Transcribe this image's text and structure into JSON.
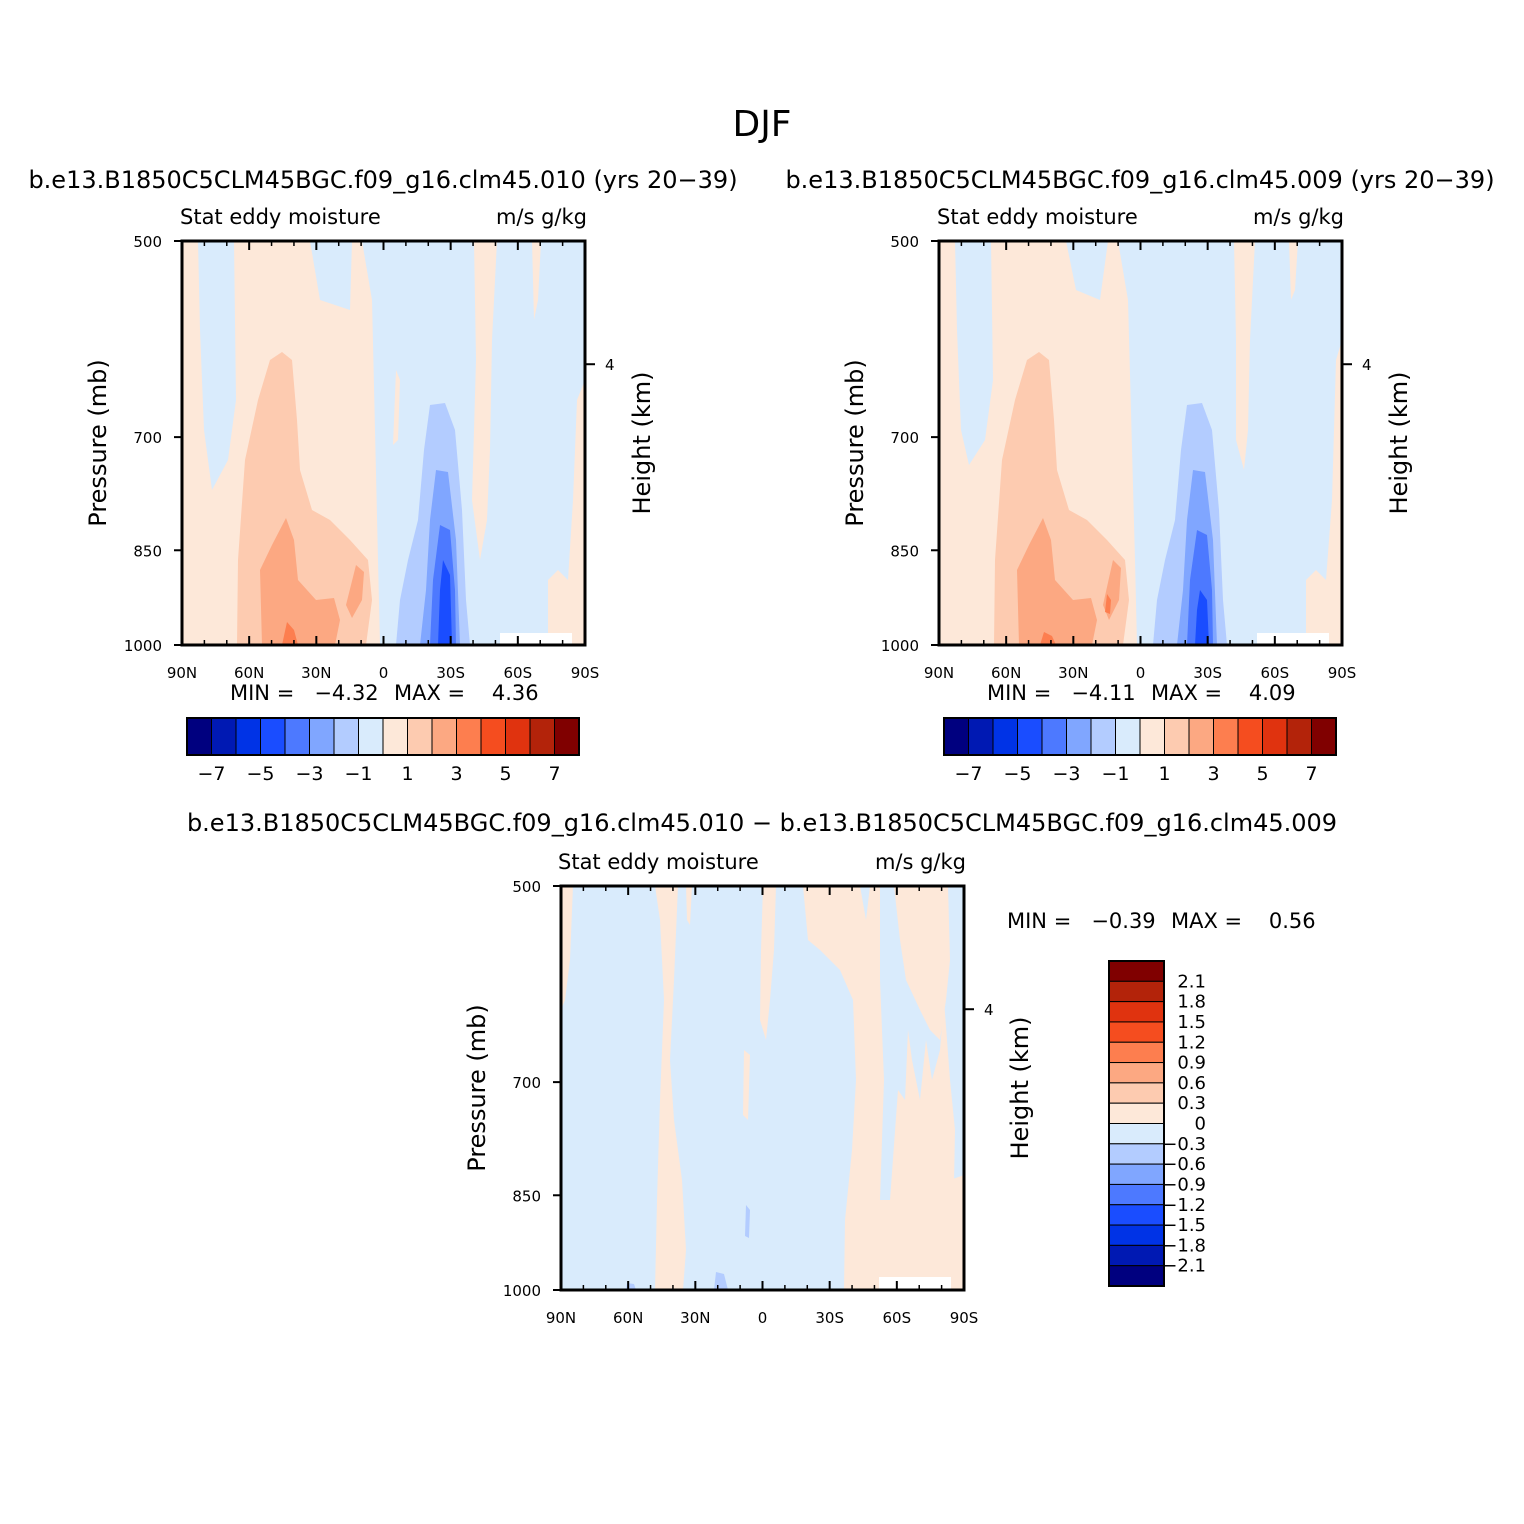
{
  "figure_title": "DJF",
  "palette": {
    "full": [
      "#00007f",
      "#0019b3",
      "#0033e6",
      "#1a4dff",
      "#4d79ff",
      "#80a6ff",
      "#b3ccff",
      "#d9ebfc",
      "#fde8d9",
      "#fdcbb0",
      "#fca882",
      "#fd7e4f",
      "#f54d1f",
      "#e0330f",
      "#b3230a",
      "#800000"
    ],
    "diff": [
      "#00007f",
      "#0019b3",
      "#0033e6",
      "#1a4dff",
      "#4d79ff",
      "#80a6ff",
      "#b3ccff",
      "#d9ebfc",
      "#fde8d9",
      "#fdcbb0",
      "#fca882",
      "#fd7e4f",
      "#f54d1f",
      "#e0330f",
      "#b3230a",
      "#800000"
    ]
  },
  "chart_data": [
    {
      "type": "heatmap",
      "title": "b.e13.B1850C5CLM45BGC.f09_g16.clm45.010 (yrs 20−39)",
      "left_label": "Stat eddy moisture",
      "right_label": "m/s g/kg",
      "xlabel": "",
      "ylabel": "Pressure (mb)",
      "ylabel_right": "Height (km)",
      "x_ticks": [
        "90N",
        "60N",
        "30N",
        "0",
        "30S",
        "60S",
        "90S"
      ],
      "y_ticks": [
        "500",
        "700",
        "850",
        "1000"
      ],
      "y_tick_values": [
        500,
        700,
        850,
        1000
      ],
      "y_right_ticks": [
        "4"
      ],
      "ylim": [
        1000,
        500
      ],
      "y_scale": "log",
      "min_text": "MIN =   −4.32",
      "max_text": "MAX =    4.36",
      "colorbar": {
        "orientation": "horizontal",
        "labels": [
          "−7",
          "−5",
          "−3",
          "−1",
          "1",
          "3",
          "5",
          "7"
        ]
      }
    },
    {
      "type": "heatmap",
      "title": "b.e13.B1850C5CLM45BGC.f09_g16.clm45.009 (yrs 20−39)",
      "left_label": "Stat eddy moisture",
      "right_label": "m/s g/kg",
      "xlabel": "",
      "ylabel": "Pressure (mb)",
      "ylabel_right": "Height (km)",
      "x_ticks": [
        "90N",
        "60N",
        "30N",
        "0",
        "30S",
        "60S",
        "90S"
      ],
      "y_ticks": [
        "500",
        "700",
        "850",
        "1000"
      ],
      "y_tick_values": [
        500,
        700,
        850,
        1000
      ],
      "y_right_ticks": [
        "4"
      ],
      "ylim": [
        1000,
        500
      ],
      "y_scale": "log",
      "min_text": "MIN =   −4.11",
      "max_text": "MAX =    4.09",
      "colorbar": {
        "orientation": "horizontal",
        "labels": [
          "−7",
          "−5",
          "−3",
          "−1",
          "1",
          "3",
          "5",
          "7"
        ]
      }
    },
    {
      "type": "heatmap",
      "title": "b.e13.B1850C5CLM45BGC.f09_g16.clm45.010 − b.e13.B1850C5CLM45BGC.f09_g16.clm45.009",
      "left_label": "Stat eddy moisture",
      "right_label": "m/s g/kg",
      "xlabel": "",
      "ylabel": "Pressure (mb)",
      "ylabel_right": "Height (km)",
      "x_ticks": [
        "90N",
        "60N",
        "30N",
        "0",
        "30S",
        "60S",
        "90S"
      ],
      "y_ticks": [
        "500",
        "700",
        "850",
        "1000"
      ],
      "y_tick_values": [
        500,
        700,
        850,
        1000
      ],
      "y_right_ticks": [
        "4"
      ],
      "ylim": [
        1000,
        500
      ],
      "y_scale": "log",
      "min_text": "MIN =   −0.39",
      "max_text": "MAX =    0.56",
      "colorbar": {
        "orientation": "vertical",
        "labels": [
          "2.1",
          "1.8",
          "1.5",
          "1.2",
          "0.9",
          "0.6",
          "0.3",
          "0",
          "−0.3",
          "−0.6",
          "−0.9",
          "−1.2",
          "−1.5",
          "−1.8",
          "−2.1"
        ]
      }
    }
  ]
}
